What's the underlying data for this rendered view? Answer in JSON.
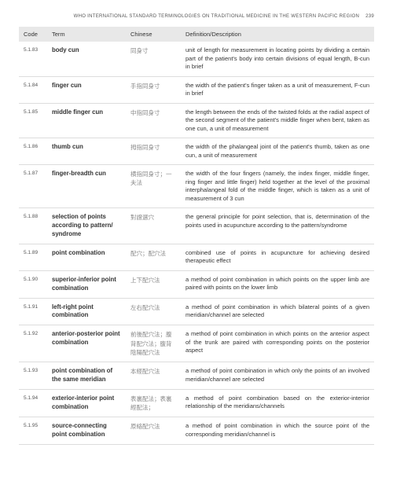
{
  "header": {
    "title": "WHO INTERNATIONAL STANDARD TERMINOLOGIES ON TRADITIONAL MEDICINE IN THE WESTERN PACIFIC REGION",
    "page_number": "239"
  },
  "columns": {
    "code": "Code",
    "term": "Term",
    "chinese": "Chinese",
    "def": "Definition/Description"
  },
  "rows": [
    {
      "code": "5.1.83",
      "term": "body cun",
      "chinese": "同身寸",
      "def": "unit of length for measurement in locating points by dividing a certain part of the patient's body into certain divisions of equal length, B-cun in brief"
    },
    {
      "code": "5.1.84",
      "term": "finger cun",
      "chinese": "手指同身寸",
      "def": "the width of the patient's finger taken as a unit of measurement, F-cun in brief"
    },
    {
      "code": "5.1.85",
      "term": "middle finger cun",
      "chinese": "中指同身寸",
      "def": "the length between the ends of the twisted folds at the radial aspect of the second segment of the patient's middle finger when bent, taken as one cun, a unit of measurement"
    },
    {
      "code": "5.1.86",
      "term": "thumb cun",
      "chinese": "拇指同身寸",
      "def": "the width of the phalangeal joint of the patient's thumb, taken as one cun, a unit of measurement"
    },
    {
      "code": "5.1.87",
      "term": "finger-breadth cun",
      "chinese": "横指同身寸；一夫法",
      "def": "the width of the four fingers (namely, the index finger, middle finger, ring finger and little finger) held together at the level of the proximal interphalangeal fold of the middle finger, which is taken as a unit of measurement of 3 cun"
    },
    {
      "code": "5.1.88",
      "term": "selection of points according to pattern/ syndrome",
      "chinese": "對證選穴",
      "def": "the general principle for point selection, that is, determination of the points used in acupuncture according to the pattern/syndrome"
    },
    {
      "code": "5.1.89",
      "term": "point combination",
      "chinese": "配穴；配穴法",
      "def": "combined use of points in acupuncture for achieving desired therapeutic effect"
    },
    {
      "code": "5.1.90",
      "term": "superior-inferior point combination",
      "chinese": "上下配穴法",
      "def": "a method of point combination in which points on the upper limb are paired with points on the lower limb"
    },
    {
      "code": "5.1.91",
      "term": "left-right point combination",
      "chinese": "左右配穴法",
      "def": "a method of point combination in which bilateral points of a given meridian/channel are selected"
    },
    {
      "code": "5.1.92",
      "term": "anterior-posterior point combination",
      "chinese": "前後配穴法；腹背配穴法；腹背陰陽配穴法",
      "def": "a method of point combination in which points on the anterior aspect of the trunk are paired with corresponding points on the posterior aspect"
    },
    {
      "code": "5.1.93",
      "term": "point combination of the same meridian",
      "chinese": "本經配穴法",
      "def": "a method of point combination in which only the points of an involved meridian/channel are selected"
    },
    {
      "code": "5.1.94",
      "term": "exterior-interior point combination",
      "chinese": "表裏配法；表裏經配法；",
      "def": "a method of point combination based on the exterior-interior relationship of the meridians/channels"
    },
    {
      "code": "5.1.95",
      "term": "source-connecting point combination",
      "chinese": "原絡配穴法",
      "def": "a method of point combination in which the source point of the corresponding meridian/channel is"
    }
  ]
}
